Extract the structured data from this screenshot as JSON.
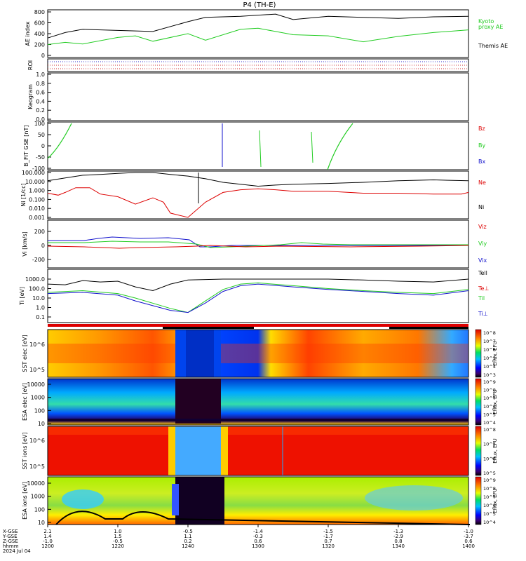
{
  "title": "P4 (TH-E)",
  "date_label": "2024 Jul 04",
  "colors": {
    "black": "#000000",
    "red": "#dd0000",
    "green": "#22cc22",
    "blue": "#1111cc"
  },
  "chart_data": [
    {
      "type": "line",
      "panel": "AE",
      "ylabel": "AE index",
      "ylim": [
        0,
        800
      ],
      "yticks": [
        "800",
        "600",
        "400",
        "200",
        "0"
      ],
      "legend": [
        "Kyoto",
        "proxy AE",
        "Themis AE"
      ],
      "series": [
        {
          "name": "Themis AE",
          "color": "black",
          "x": [
            0,
            5,
            10,
            20,
            30,
            40,
            45,
            55,
            65,
            70,
            80,
            90,
            100,
            110,
            120
          ],
          "values": [
            320,
            420,
            480,
            460,
            440,
            620,
            700,
            720,
            760,
            660,
            720,
            700,
            680,
            710,
            720
          ]
        },
        {
          "name": "Kyoto proxy AE",
          "color": "green",
          "x": [
            0,
            5,
            10,
            20,
            25,
            30,
            40,
            45,
            55,
            60,
            65,
            70,
            80,
            90,
            100,
            110,
            120
          ],
          "values": [
            200,
            240,
            210,
            330,
            360,
            260,
            400,
            280,
            480,
            500,
            440,
            380,
            360,
            250,
            350,
            420,
            470
          ]
        }
      ]
    },
    {
      "type": "line",
      "panel": "ROI",
      "ylabel": "ROI"
    },
    {
      "type": "line",
      "panel": "Keogram",
      "ylabel": "Keogram",
      "ylim": [
        0.0,
        1.0
      ],
      "yticks": [
        "1.0",
        "0.8",
        "0.6",
        "0.4",
        "0.2",
        "0.0"
      ]
    },
    {
      "type": "line",
      "panel": "B",
      "ylabel": "B_FIT GSE [nT]",
      "ylim": [
        -100,
        100
      ],
      "yticks": [
        "100",
        "50",
        "0",
        "-50",
        "-100"
      ],
      "legend": [
        "Bz",
        "By",
        "Bx"
      ]
    },
    {
      "type": "line",
      "panel": "Ni",
      "ylabel": "Ni [1/cc]",
      "log": true,
      "ylim": [
        0.001,
        100
      ],
      "yticks": [
        "100.000",
        "10.000",
        "1.000",
        "0.100",
        "0.010",
        "0.001"
      ],
      "legend": [
        "Ne",
        "Ni"
      ],
      "series": [
        {
          "name": "Ni",
          "color": "black",
          "x": [
            0,
            5,
            10,
            15,
            20,
            25,
            30,
            35,
            40,
            45,
            50,
            55,
            60,
            65,
            70,
            80,
            90,
            100,
            110,
            120
          ],
          "values": [
            12,
            25,
            50,
            60,
            80,
            100,
            100,
            60,
            40,
            20,
            8,
            5,
            3,
            4,
            5,
            6,
            8,
            12,
            15,
            12
          ]
        },
        {
          "name": "Ne",
          "color": "red",
          "x": [
            0,
            3,
            5,
            8,
            12,
            15,
            20,
            25,
            30,
            33,
            35,
            40,
            45,
            50,
            55,
            60,
            65,
            70,
            80,
            90,
            100,
            110,
            118,
            120
          ],
          "values": [
            0.5,
            0.3,
            0.6,
            2,
            2,
            0.4,
            0.2,
            0.03,
            0.15,
            0.05,
            0.003,
            0.001,
            0.05,
            0.6,
            1.2,
            1.5,
            1.2,
            0.8,
            0.8,
            0.5,
            0.5,
            0.4,
            0.4,
            0.6
          ]
        }
      ]
    },
    {
      "type": "line",
      "panel": "Vi",
      "ylabel": "Vi [km/s]",
      "ylim": [
        -300,
        300
      ],
      "yticks": [
        "200",
        "0",
        "-200"
      ],
      "legend": [
        "Viz",
        "Viy",
        "Vix"
      ]
    },
    {
      "type": "line",
      "panel": "Ti",
      "ylabel": "Ti [eV]",
      "log": true,
      "ylim": [
        0.1,
        1000
      ],
      "yticks": [
        "1000.0",
        "100.0",
        "10.0",
        "1.0",
        "0.1"
      ],
      "legend": [
        "Tell",
        "Te⊥",
        "Til",
        "Ti⊥"
      ],
      "series": [
        {
          "name": "Tell",
          "color": "black",
          "x": [
            0,
            5,
            10,
            15,
            20,
            25,
            30,
            35,
            40,
            45,
            50,
            55,
            60,
            70,
            80,
            90,
            100,
            110,
            120
          ],
          "values": [
            300,
            250,
            700,
            500,
            600,
            150,
            60,
            300,
            800,
            900,
            1000,
            1000,
            1100,
            1000,
            1000,
            800,
            600,
            500,
            1000
          ]
        },
        {
          "name": "Te⊥",
          "color": "red",
          "x": [
            0,
            20,
            40,
            60,
            80,
            100,
            120
          ],
          "values": [
            40,
            40,
            40,
            40,
            40,
            40,
            40
          ]
        },
        {
          "name": "Til",
          "color": "green",
          "x": [
            0,
            10,
            20,
            25,
            35,
            40,
            45,
            50,
            55,
            60,
            70,
            80,
            90,
            100,
            110,
            120
          ],
          "values": [
            40,
            60,
            30,
            10,
            0.8,
            0.3,
            5,
            80,
            300,
            400,
            200,
            100,
            60,
            40,
            30,
            80
          ]
        },
        {
          "name": "Ti⊥",
          "color": "blue",
          "x": [
            0,
            10,
            20,
            25,
            35,
            40,
            45,
            50,
            55,
            60,
            70,
            80,
            90,
            100,
            110,
            120
          ],
          "values": [
            30,
            40,
            20,
            5,
            0.5,
            0.3,
            3,
            50,
            200,
            300,
            150,
            80,
            50,
            30,
            20,
            60
          ]
        }
      ]
    },
    {
      "type": "heatmap",
      "panel": "SST elec",
      "ylabel": "SST elec [eV]",
      "yticks": [
        "10^6",
        "10^5"
      ],
      "colorbar_label": "Eflux, EFU",
      "colorbar_ticks": [
        "10^8",
        "10^7",
        "10^6",
        "10^5",
        "10^4",
        "10^3"
      ]
    },
    {
      "type": "heatmap",
      "panel": "ESA elec",
      "ylabel": "ESA elec [eV]",
      "yticks": [
        "10000",
        "1000",
        "100",
        "10"
      ],
      "colorbar_label": "Eflux, EFU",
      "colorbar_ticks": [
        "10^9",
        "10^8",
        "10^7",
        "10^6",
        "10^5",
        "10^4"
      ]
    },
    {
      "type": "heatmap",
      "panel": "SST ions",
      "ylabel": "SST ions [eV]",
      "yticks": [
        "10^6",
        "10^5"
      ],
      "colorbar_label": "Eflux, EFU",
      "colorbar_ticks": [
        "10^8",
        "10^7",
        "10^6",
        "10^5"
      ]
    },
    {
      "type": "heatmap",
      "panel": "ESA ions",
      "ylabel": "ESA ions [eV]",
      "yticks": [
        "10000",
        "1000",
        "100",
        "10"
      ],
      "colorbar_label": "Eflux, EFU",
      "colorbar_ticks": [
        "10^9",
        "10^8",
        "10^7",
        "10^6",
        "10^5",
        "10^4"
      ]
    }
  ],
  "x_axis": {
    "row_labels": [
      "X-GSE",
      "Y-GSE",
      "Z-GSE",
      "hhmm",
      "2024 Jul 04"
    ],
    "ticks": [
      {
        "x_gse": "2.1",
        "y_gse": "1.4",
        "z_gse": "-1.0",
        "hhmm": "1200"
      },
      {
        "x_gse": "1.0",
        "y_gse": "1.5",
        "z_gse": "-0.5",
        "hhmm": "1220"
      },
      {
        "x_gse": "-0.5",
        "y_gse": "1.1",
        "z_gse": "0.2",
        "hhmm": "1240"
      },
      {
        "x_gse": "-1.4",
        "y_gse": "-0.3",
        "z_gse": "0.6",
        "hhmm": "1300"
      },
      {
        "x_gse": "-1.5",
        "y_gse": "-1.7",
        "z_gse": "0.7",
        "hhmm": "1320"
      },
      {
        "x_gse": "-1.3",
        "y_gse": "-2.9",
        "z_gse": "0.8",
        "hhmm": "1340"
      },
      {
        "x_gse": "-1.0",
        "y_gse": "-3.7",
        "z_gse": "0.6",
        "hhmm": "1400"
      }
    ]
  }
}
